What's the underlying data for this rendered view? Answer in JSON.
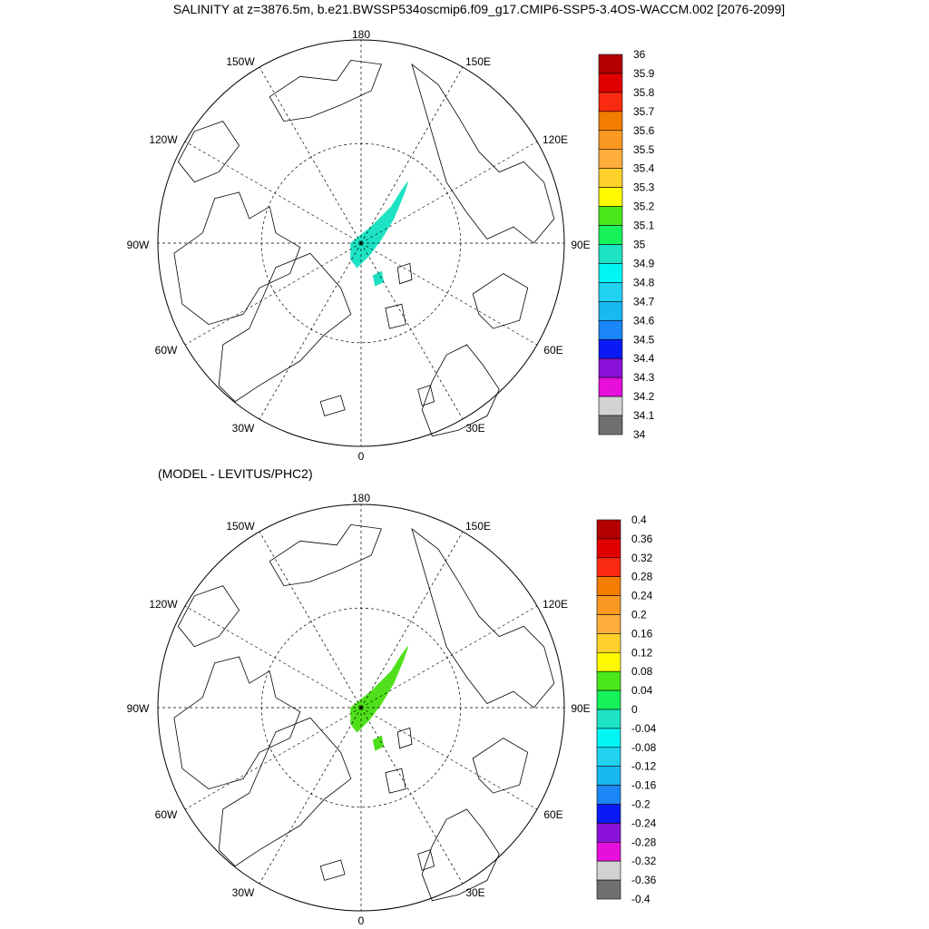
{
  "title": "SALINITY at z=3876.5m, b.e21.BWSSP534oscmip6.f09_g17.CMIP6-SSP5-3.4OS-WACCM.002 [2076-2099]",
  "subtitle": "(MODEL - LEVITUS/PHC2)",
  "map_labels": {
    "top": "180",
    "bottom": "0",
    "left": "90W",
    "right": "90E",
    "ul1": "150W",
    "ul2": "120W",
    "ur1": "150E",
    "ur2": "120E",
    "ll1": "60W",
    "ll2": "30W",
    "lr1": "60E",
    "lr2": "30E"
  },
  "panel1": {
    "colorbar_labels": [
      "36",
      "35.9",
      "35.8",
      "35.7",
      "35.6",
      "35.5",
      "35.4",
      "35.3",
      "35.2",
      "35.1",
      "35",
      "34.9",
      "34.8",
      "34.7",
      "34.6",
      "34.5",
      "34.4",
      "34.3",
      "34.2",
      "34.1",
      "34"
    ],
    "field_color": "#1de3c4"
  },
  "panel2": {
    "colorbar_labels": [
      "0.4",
      "0.36",
      "0.32",
      "0.28",
      "0.24",
      "0.2",
      "0.16",
      "0.12",
      "0.08",
      "0.04",
      "0",
      "-0.04",
      "-0.08",
      "-0.12",
      "-0.16",
      "-0.2",
      "-0.24",
      "-0.28",
      "-0.32",
      "-0.36",
      "-0.4"
    ],
    "field_color": "#4fe01b"
  },
  "colorbar_colors": [
    "#b30000",
    "#e00000",
    "#fa2a10",
    "#f27d00",
    "#fa9922",
    "#ffae3c",
    "#ffd12a",
    "#fffa00",
    "#4ae81a",
    "#17f25a",
    "#1de3c4",
    "#00f5f5",
    "#20d2f0",
    "#18b8f0",
    "#1a86f7",
    "#0a1af5",
    "#8a12d8",
    "#e60fdc",
    "#d2d2d2",
    "#707070"
  ]
}
